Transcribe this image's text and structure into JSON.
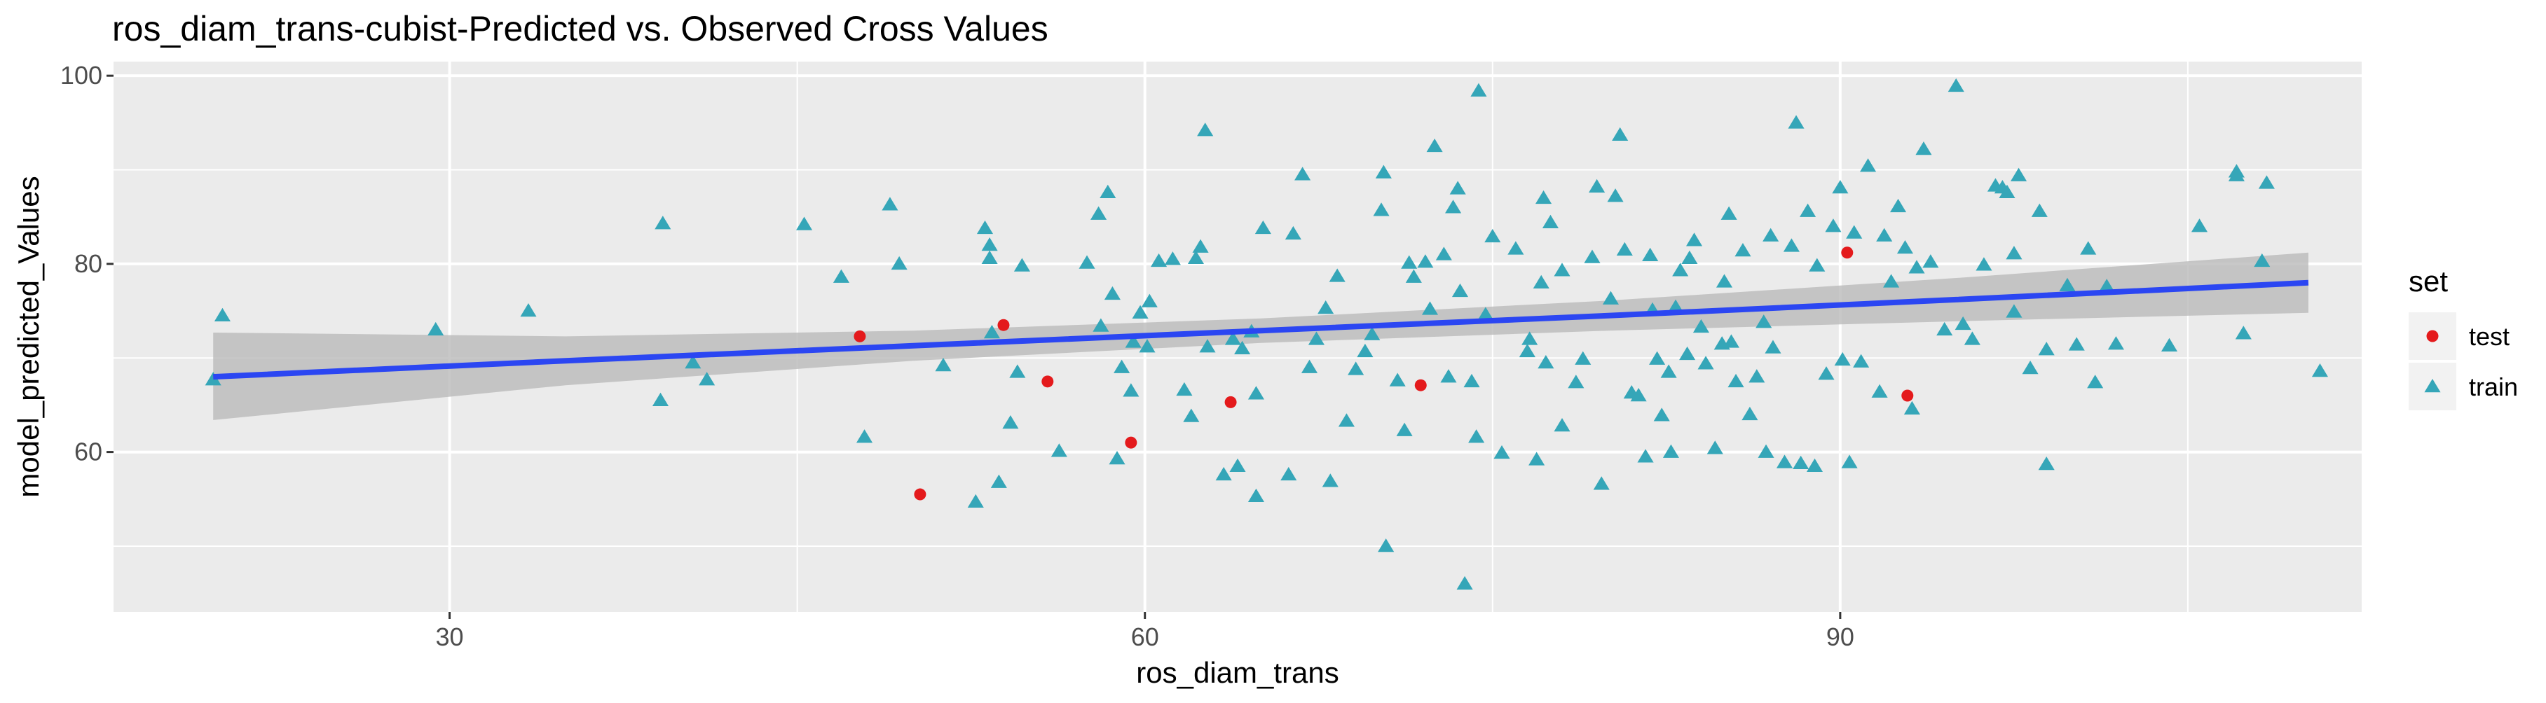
{
  "chart_data": {
    "type": "scatter",
    "title": "ros_diam_trans-cubist-Predicted vs. Observed Cross Values",
    "xlabel": "ros_diam_trans",
    "ylabel": "model_predicted_Values",
    "xlim": [
      15.5,
      112.5
    ],
    "ylim": [
      43,
      101.5
    ],
    "x_ticks": [
      30,
      60,
      90
    ],
    "y_ticks": [
      60,
      80,
      100
    ],
    "grid": true,
    "legend": {
      "title": "set",
      "position": "right",
      "entries": [
        {
          "label": "test",
          "shape": "circle",
          "color": "#e41a1c"
        },
        {
          "label": "train",
          "shape": "triangle",
          "color": "#35a6b8"
        }
      ]
    },
    "trend": {
      "method": "linear",
      "color": "#2b46f2",
      "band_color": "#b8b8b8",
      "points": [
        {
          "x": 19.8,
          "y": 68.0,
          "lo": 63.4,
          "hi": 72.7
        },
        {
          "x": 35,
          "y": 69.7,
          "lo": 67.1,
          "hi": 72.3
        },
        {
          "x": 50,
          "y": 71.3,
          "lo": 69.7,
          "hi": 72.9
        },
        {
          "x": 65,
          "y": 72.9,
          "lo": 71.6,
          "hi": 74.2
        },
        {
          "x": 80,
          "y": 74.5,
          "lo": 72.9,
          "hi": 76.1
        },
        {
          "x": 95,
          "y": 76.2,
          "lo": 73.9,
          "hi": 78.5
        },
        {
          "x": 110.2,
          "y": 78.0,
          "lo": 74.8,
          "hi": 81.2
        }
      ]
    },
    "series": [
      {
        "name": "test",
        "points": [
          [
            47.7,
            72.3
          ],
          [
            50.3,
            55.5
          ],
          [
            53.9,
            73.5
          ],
          [
            55.8,
            67.5
          ],
          [
            59.4,
            61.0
          ],
          [
            63.7,
            65.3
          ],
          [
            71.9,
            67.1
          ],
          [
            90.3,
            81.2
          ],
          [
            92.9,
            66.0
          ]
        ]
      },
      {
        "name": "train",
        "points": [
          [
            19.8,
            67.7
          ],
          [
            20.2,
            74.5
          ],
          [
            29.4,
            73.0
          ],
          [
            33.4,
            75.0
          ],
          [
            39.1,
            65.5
          ],
          [
            39.2,
            84.3
          ],
          [
            40.5,
            69.5
          ],
          [
            41.1,
            67.7
          ],
          [
            45.3,
            84.2
          ],
          [
            46.9,
            78.6
          ],
          [
            47.9,
            61.6
          ],
          [
            49.0,
            86.3
          ],
          [
            49.4,
            80.0
          ],
          [
            51.3,
            69.2
          ],
          [
            52.7,
            54.7
          ],
          [
            53.1,
            83.8
          ],
          [
            53.3,
            80.6
          ],
          [
            53.3,
            82.0
          ],
          [
            53.4,
            72.7
          ],
          [
            53.7,
            56.8
          ],
          [
            54.2,
            63.1
          ],
          [
            54.5,
            68.5
          ],
          [
            54.7,
            79.8
          ],
          [
            56.3,
            60.1
          ],
          [
            57.5,
            80.1
          ],
          [
            58.0,
            85.3
          ],
          [
            58.1,
            73.4
          ],
          [
            58.4,
            87.6
          ],
          [
            58.6,
            76.8
          ],
          [
            58.8,
            59.3
          ],
          [
            59.0,
            69.0
          ],
          [
            59.4,
            66.5
          ],
          [
            59.5,
            71.7
          ],
          [
            59.8,
            74.8
          ],
          [
            60.1,
            71.2
          ],
          [
            60.2,
            76.0
          ],
          [
            60.6,
            80.3
          ],
          [
            61.2,
            80.5
          ],
          [
            61.7,
            66.6
          ],
          [
            62.0,
            63.8
          ],
          [
            62.2,
            80.6
          ],
          [
            62.4,
            81.8
          ],
          [
            62.6,
            94.2
          ],
          [
            62.7,
            71.2
          ],
          [
            63.4,
            57.6
          ],
          [
            63.8,
            72.0
          ],
          [
            64.0,
            58.5
          ],
          [
            64.2,
            71.0
          ],
          [
            64.6,
            72.8
          ],
          [
            64.8,
            66.2
          ],
          [
            64.8,
            55.3
          ],
          [
            65.1,
            83.8
          ],
          [
            66.2,
            57.6
          ],
          [
            66.4,
            83.2
          ],
          [
            66.8,
            89.5
          ],
          [
            67.1,
            69.0
          ],
          [
            67.4,
            72.0
          ],
          [
            67.8,
            75.3
          ],
          [
            68.0,
            56.9
          ],
          [
            68.3,
            78.7
          ],
          [
            68.7,
            63.3
          ],
          [
            69.1,
            68.8
          ],
          [
            69.5,
            70.7
          ],
          [
            69.8,
            72.5
          ],
          [
            70.2,
            85.7
          ],
          [
            70.3,
            89.7
          ],
          [
            70.4,
            50.0
          ],
          [
            70.9,
            67.6
          ],
          [
            71.2,
            62.3
          ],
          [
            71.4,
            80.1
          ],
          [
            71.6,
            78.6
          ],
          [
            72.1,
            80.2
          ],
          [
            72.3,
            75.2
          ],
          [
            72.5,
            92.5
          ],
          [
            72.9,
            81.0
          ],
          [
            73.1,
            68.0
          ],
          [
            73.3,
            86.0
          ],
          [
            73.5,
            88.0
          ],
          [
            73.6,
            77.1
          ],
          [
            73.8,
            46.0
          ],
          [
            74.1,
            67.5
          ],
          [
            74.3,
            61.6
          ],
          [
            74.4,
            98.4
          ],
          [
            74.7,
            74.6
          ],
          [
            75.0,
            82.9
          ],
          [
            75.4,
            59.9
          ],
          [
            76.0,
            81.6
          ],
          [
            76.5,
            70.7
          ],
          [
            76.6,
            72.0
          ],
          [
            76.9,
            59.2
          ],
          [
            77.1,
            78.0
          ],
          [
            77.2,
            87.0
          ],
          [
            77.3,
            69.5
          ],
          [
            77.5,
            84.4
          ],
          [
            78.0,
            62.8
          ],
          [
            78.0,
            79.3
          ],
          [
            78.6,
            67.4
          ],
          [
            78.9,
            69.9
          ],
          [
            79.3,
            80.7
          ],
          [
            79.5,
            88.2
          ],
          [
            79.7,
            56.6
          ],
          [
            80.1,
            76.3
          ],
          [
            80.3,
            87.2
          ],
          [
            80.5,
            93.7
          ],
          [
            80.7,
            81.5
          ],
          [
            81.0,
            66.3
          ],
          [
            81.3,
            66.0
          ],
          [
            81.6,
            59.5
          ],
          [
            81.8,
            80.9
          ],
          [
            81.9,
            75.1
          ],
          [
            82.1,
            69.9
          ],
          [
            82.3,
            63.9
          ],
          [
            82.6,
            68.5
          ],
          [
            82.7,
            60.0
          ],
          [
            82.9,
            75.4
          ],
          [
            83.1,
            79.3
          ],
          [
            83.4,
            70.4
          ],
          [
            83.5,
            80.6
          ],
          [
            83.7,
            82.5
          ],
          [
            84.0,
            73.3
          ],
          [
            84.2,
            69.4
          ],
          [
            84.6,
            60.4
          ],
          [
            84.9,
            71.5
          ],
          [
            85.0,
            78.1
          ],
          [
            85.2,
            85.3
          ],
          [
            85.3,
            71.7
          ],
          [
            85.5,
            67.5
          ],
          [
            85.8,
            81.4
          ],
          [
            86.1,
            64.0
          ],
          [
            86.4,
            68.0
          ],
          [
            86.7,
            73.8
          ],
          [
            86.8,
            60.0
          ],
          [
            87.0,
            83.0
          ],
          [
            87.1,
            71.1
          ],
          [
            87.6,
            58.9
          ],
          [
            87.9,
            81.9
          ],
          [
            88.1,
            95.0
          ],
          [
            88.3,
            58.8
          ],
          [
            88.6,
            85.6
          ],
          [
            88.9,
            58.5
          ],
          [
            89.0,
            79.8
          ],
          [
            89.4,
            68.3
          ],
          [
            89.7,
            84.0
          ],
          [
            90.0,
            88.1
          ],
          [
            90.1,
            69.8
          ],
          [
            90.4,
            58.9
          ],
          [
            90.6,
            83.3
          ],
          [
            90.9,
            69.6
          ],
          [
            91.2,
            90.4
          ],
          [
            91.7,
            66.4
          ],
          [
            91.9,
            83.0
          ],
          [
            92.2,
            78.1
          ],
          [
            92.5,
            86.1
          ],
          [
            92.8,
            81.7
          ],
          [
            93.1,
            64.6
          ],
          [
            93.3,
            79.6
          ],
          [
            93.6,
            92.2
          ],
          [
            93.9,
            80.2
          ],
          [
            94.5,
            73.0
          ],
          [
            95.0,
            98.9
          ],
          [
            95.3,
            73.6
          ],
          [
            95.7,
            72.0
          ],
          [
            96.2,
            79.9
          ],
          [
            96.7,
            88.3
          ],
          [
            97.0,
            88.1
          ],
          [
            97.2,
            87.6
          ],
          [
            97.5,
            81.1
          ],
          [
            97.5,
            74.9
          ],
          [
            97.7,
            89.4
          ],
          [
            98.2,
            68.9
          ],
          [
            98.6,
            85.6
          ],
          [
            98.9,
            70.9
          ],
          [
            98.9,
            58.7
          ],
          [
            99.8,
            77.7
          ],
          [
            100.2,
            71.4
          ],
          [
            100.7,
            81.6
          ],
          [
            101.0,
            67.4
          ],
          [
            101.5,
            77.6
          ],
          [
            101.9,
            71.5
          ],
          [
            104.2,
            71.3
          ],
          [
            105.5,
            84.0
          ],
          [
            107.1,
            89.8
          ],
          [
            107.1,
            89.4
          ],
          [
            107.4,
            72.6
          ],
          [
            108.2,
            80.3
          ],
          [
            108.4,
            88.6
          ],
          [
            110.7,
            68.6
          ]
        ]
      }
    ]
  }
}
